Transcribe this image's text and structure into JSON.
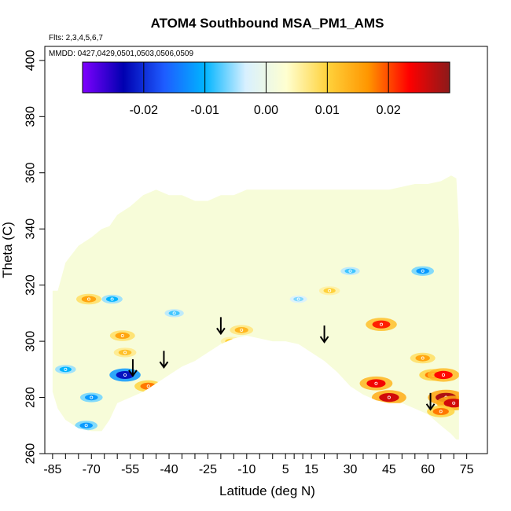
{
  "chart_data": {
    "type": "heatmap",
    "title": "ATOM4 Southbound MSA_PM1_AMS",
    "flights_note": "Flts: 2,3,4,5,6,7",
    "dates_note": "MMDD: 0427,0429,0501,0503,0506,0509",
    "xlabel": "Latitude (deg N)",
    "ylabel": "Theta (C)",
    "xlim": [
      -88,
      83
    ],
    "ylim": [
      260,
      405
    ],
    "x_ticks": [
      -85,
      -70,
      -55,
      -40,
      -25,
      -10,
      5,
      15,
      30,
      45,
      60,
      75
    ],
    "y_ticks": [
      260,
      280,
      300,
      320,
      340,
      360,
      380,
      400
    ],
    "colorbar": {
      "range": [
        -0.03,
        0.03
      ],
      "ticks": [
        -0.02,
        -0.01,
        0.0,
        0.01,
        0.02
      ],
      "tick_labels": [
        "-0.02",
        "-0.01",
        "0.00",
        "0.01",
        "0.02"
      ],
      "colors": [
        "#7f00ff",
        "#0000b0",
        "#1e5cff",
        "#00b4ff",
        "#d8f0ff",
        "#ffffd0",
        "#ffd23c",
        "#ff9600",
        "#ff0000",
        "#8b1a1a"
      ]
    },
    "coverage_envelope": {
      "lat": [
        -85,
        -83,
        -80,
        -75,
        -70,
        -66,
        -63,
        -60,
        -55,
        -50,
        -45,
        -40,
        -35,
        -30,
        -25,
        -20,
        -15,
        -10,
        -5,
        0,
        5,
        10,
        15,
        20,
        25,
        30,
        35,
        40,
        45,
        50,
        55,
        60,
        65,
        69,
        71,
        72
      ],
      "theta_top": [
        318,
        318,
        328,
        334,
        337,
        340,
        341,
        345,
        348,
        352,
        354,
        352,
        352,
        350,
        350,
        352,
        352,
        354,
        354,
        354,
        354,
        354,
        354,
        354,
        354,
        354,
        354,
        354,
        354,
        355,
        356,
        356,
        357,
        359,
        358,
        340
      ],
      "theta_bottom": [
        282,
        276,
        272,
        269,
        268,
        268,
        272,
        278,
        280,
        282,
        285,
        288,
        291,
        293,
        296,
        299,
        301,
        302,
        301,
        300,
        300,
        299,
        296,
        293,
        289,
        284,
        281,
        279,
        278,
        278,
        276,
        274,
        270,
        267,
        265,
        265
      ]
    },
    "hotspots": [
      {
        "lat": -71,
        "theta": 315,
        "value": 0.015
      },
      {
        "lat": -58,
        "theta": 302,
        "value": 0.015
      },
      {
        "lat": -57,
        "theta": 296,
        "value": 0.012
      },
      {
        "lat": -57,
        "theta": 288,
        "value": -0.022
      },
      {
        "lat": -48,
        "theta": 284,
        "value": 0.018
      },
      {
        "lat": -42,
        "theta": 283,
        "value": 0.015
      },
      {
        "lat": -16,
        "theta": 300,
        "value": 0.01
      },
      {
        "lat": -12,
        "theta": 304,
        "value": 0.013
      },
      {
        "lat": -70,
        "theta": 280,
        "value": -0.012
      },
      {
        "lat": -80,
        "theta": 290,
        "value": -0.01
      },
      {
        "lat": -72,
        "theta": 270,
        "value": -0.012
      },
      {
        "lat": -62,
        "theta": 315,
        "value": -0.01
      },
      {
        "lat": -38,
        "theta": 310,
        "value": -0.008
      },
      {
        "lat": 22,
        "theta": 318,
        "value": 0.01
      },
      {
        "lat": 42,
        "theta": 306,
        "value": 0.022
      },
      {
        "lat": 40,
        "theta": 285,
        "value": 0.024
      },
      {
        "lat": 45,
        "theta": 280,
        "value": 0.026
      },
      {
        "lat": 58,
        "theta": 294,
        "value": 0.015
      },
      {
        "lat": 62,
        "theta": 288,
        "value": 0.018
      },
      {
        "lat": 66,
        "theta": 288,
        "value": 0.023
      },
      {
        "lat": 67,
        "theta": 280,
        "value": 0.028
      },
      {
        "lat": 70,
        "theta": 278,
        "value": 0.026
      },
      {
        "lat": 65,
        "theta": 275,
        "value": 0.018
      },
      {
        "lat": 58,
        "theta": 325,
        "value": -0.012
      },
      {
        "lat": 30,
        "theta": 325,
        "value": -0.008
      },
      {
        "lat": 10,
        "theta": 315,
        "value": -0.006
      }
    ],
    "arrows": [
      {
        "lat": -54,
        "theta": 288
      },
      {
        "lat": -42,
        "theta": 291
      },
      {
        "lat": -20,
        "theta": 303
      },
      {
        "lat": 20,
        "theta": 300
      },
      {
        "lat": 61,
        "theta": 276
      }
    ]
  }
}
